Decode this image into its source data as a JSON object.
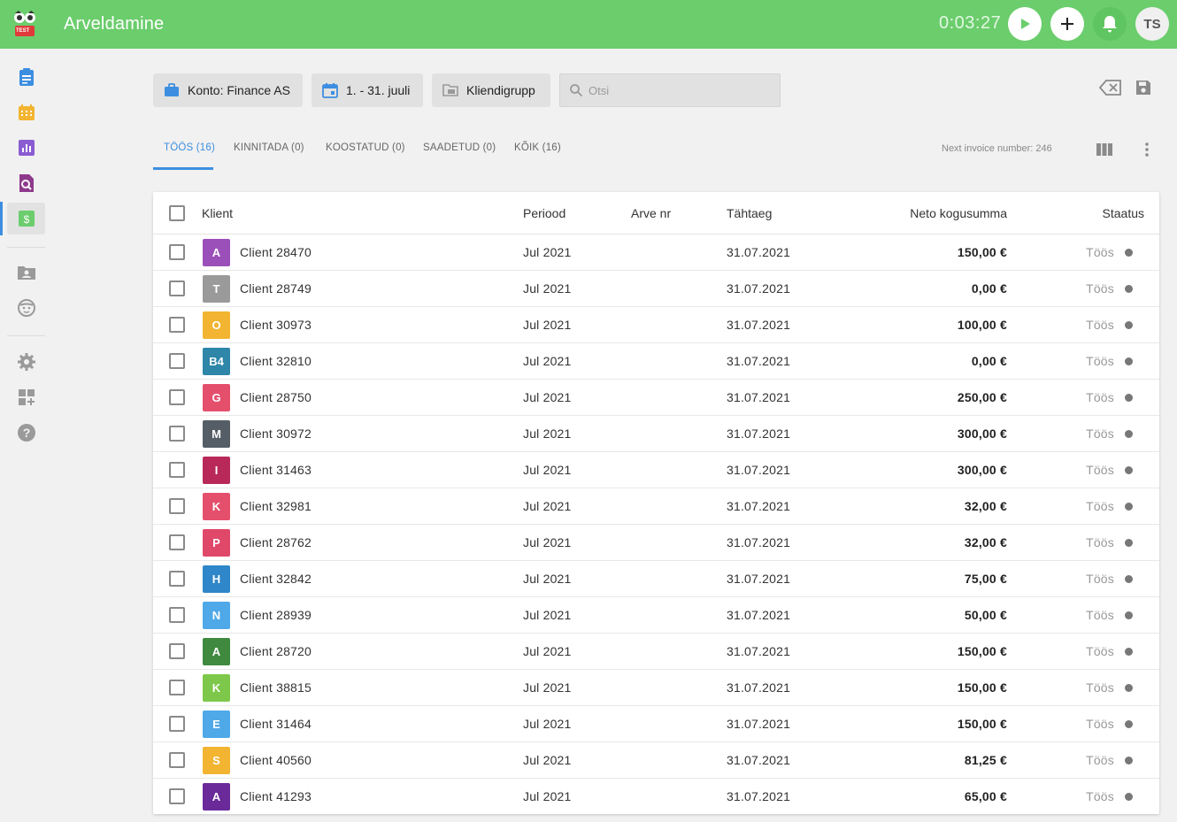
{
  "app": {
    "title": "Arveldamine",
    "logo_badge": "TEST",
    "timer": "0:03:27",
    "user_initials": "TS",
    "accent_color": "#6bcd6c",
    "link_color": "#3d8ee0"
  },
  "sidebar": {
    "items": [
      {
        "icon": "clipboard-icon",
        "color": "#3d8ee0"
      },
      {
        "icon": "calendar-icon",
        "color": "#f2b431"
      },
      {
        "icon": "bar-chart-icon",
        "color": "#8a5cd1"
      },
      {
        "icon": "search-report-icon",
        "color": "#8e3a8c"
      },
      {
        "icon": "dollar-icon",
        "color": "#6bcd6c",
        "active": true
      },
      {
        "icon": "client-folder-icon",
        "color": "#9a9a9a"
      },
      {
        "icon": "face-icon",
        "color": "#9a9a9a"
      },
      {
        "icon": "gear-icon",
        "color": "#9a9a9a"
      },
      {
        "icon": "add-widget-icon",
        "color": "#9a9a9a"
      },
      {
        "icon": "help-icon",
        "color": "#9a9a9a"
      }
    ]
  },
  "filters": {
    "account": "Konto: Finance AS",
    "period": "1. - 31. juuli",
    "client_group": "Kliendigrupp",
    "search_placeholder": "Otsi"
  },
  "tabs": [
    {
      "label": "TÖÖS (16)",
      "active": true
    },
    {
      "label": "KINNITADA (0)"
    },
    {
      "label": "KOOSTATUD (0)"
    },
    {
      "label": "SAADETUD (0)"
    },
    {
      "label": "KÕIK (16)"
    }
  ],
  "next_invoice": "Next invoice number: 246",
  "table": {
    "columns": {
      "client": "Klient",
      "period": "Periood",
      "invoice_no": "Arve nr",
      "due": "Tähtaeg",
      "net_total": "Neto kogusumma",
      "status": "Staatus"
    },
    "rows": [
      {
        "badge": "A",
        "badge_color": "#9b4fb8",
        "client": "Client 28470",
        "period": "Jul 2021",
        "invoice_no": "",
        "due": "31.07.2021",
        "amount": "150,00 €",
        "status": "Töös"
      },
      {
        "badge": "T",
        "badge_color": "#9a9a9a",
        "client": "Client 28749",
        "period": "Jul 2021",
        "invoice_no": "",
        "due": "31.07.2021",
        "amount": "0,00 €",
        "status": "Töös"
      },
      {
        "badge": "O",
        "badge_color": "#f2b431",
        "client": "Client 30973",
        "period": "Jul 2021",
        "invoice_no": "",
        "due": "31.07.2021",
        "amount": "100,00 €",
        "status": "Töös"
      },
      {
        "badge": "B4",
        "badge_color": "#2e86a8",
        "client": "Client 32810",
        "period": "Jul 2021",
        "invoice_no": "",
        "due": "31.07.2021",
        "amount": "0,00 €",
        "status": "Töös"
      },
      {
        "badge": "G",
        "badge_color": "#e4506c",
        "client": "Client 28750",
        "period": "Jul 2021",
        "invoice_no": "",
        "due": "31.07.2021",
        "amount": "250,00 €",
        "status": "Töös"
      },
      {
        "badge": "M",
        "badge_color": "#555e66",
        "client": "Client 30972",
        "period": "Jul 2021",
        "invoice_no": "",
        "due": "31.07.2021",
        "amount": "300,00 €",
        "status": "Töös"
      },
      {
        "badge": "I",
        "badge_color": "#b8295a",
        "client": "Client 31463",
        "period": "Jul 2021",
        "invoice_no": "",
        "due": "31.07.2021",
        "amount": "300,00 €",
        "status": "Töös"
      },
      {
        "badge": "K",
        "badge_color": "#e4506c",
        "client": "Client 32981",
        "period": "Jul 2021",
        "invoice_no": "",
        "due": "31.07.2021",
        "amount": "32,00 €",
        "status": "Töös"
      },
      {
        "badge": "P",
        "badge_color": "#e0486a",
        "client": "Client 28762",
        "period": "Jul 2021",
        "invoice_no": "",
        "due": "31.07.2021",
        "amount": "32,00 €",
        "status": "Töös"
      },
      {
        "badge": "H",
        "badge_color": "#2f86c8",
        "client": "Client 32842",
        "period": "Jul 2021",
        "invoice_no": "",
        "due": "31.07.2021",
        "amount": "75,00 €",
        "status": "Töös"
      },
      {
        "badge": "N",
        "badge_color": "#4fa8e8",
        "client": "Client 28939",
        "period": "Jul 2021",
        "invoice_no": "",
        "due": "31.07.2021",
        "amount": "50,00 €",
        "status": "Töös"
      },
      {
        "badge": "A",
        "badge_color": "#3f8a3f",
        "client": "Client 28720",
        "period": "Jul 2021",
        "invoice_no": "",
        "due": "31.07.2021",
        "amount": "150,00 €",
        "status": "Töös"
      },
      {
        "badge": "K",
        "badge_color": "#7dc84a",
        "client": "Client 38815",
        "period": "Jul 2021",
        "invoice_no": "",
        "due": "31.07.2021",
        "amount": "150,00 €",
        "status": "Töös"
      },
      {
        "badge": "E",
        "badge_color": "#4fa8e8",
        "client": "Client 31464",
        "period": "Jul 2021",
        "invoice_no": "",
        "due": "31.07.2021",
        "amount": "150,00 €",
        "status": "Töös"
      },
      {
        "badge": "S",
        "badge_color": "#f2b431",
        "client": "Client 40560",
        "period": "Jul 2021",
        "invoice_no": "",
        "due": "31.07.2021",
        "amount": "81,25 €",
        "status": "Töös"
      },
      {
        "badge": "A",
        "badge_color": "#6a2a9a",
        "client": "Client 41293",
        "period": "Jul 2021",
        "invoice_no": "",
        "due": "31.07.2021",
        "amount": "65,00 €",
        "status": "Töös"
      }
    ]
  }
}
